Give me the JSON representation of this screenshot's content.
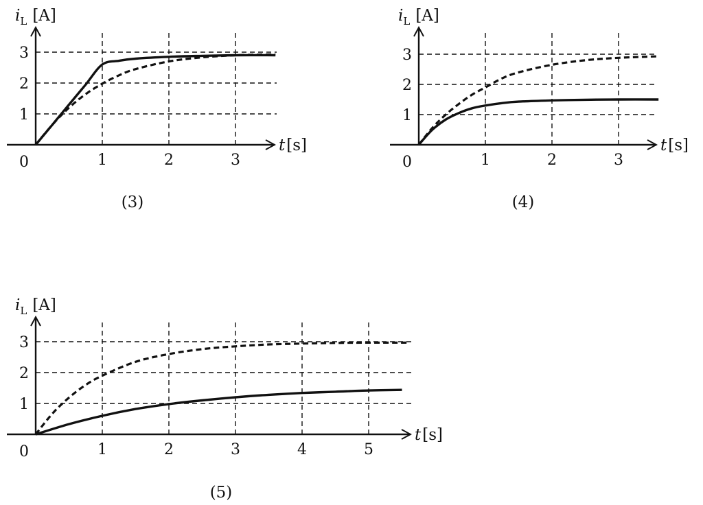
{
  "chart_data": [
    {
      "type": "line",
      "caption": "(3)",
      "ylabel": {
        "symbol": "i",
        "subscript": "L",
        "unit": "[A]"
      },
      "xlabel": {
        "symbol": "t",
        "unit": "[s]"
      },
      "origin_label": "0",
      "x_ticks": [
        "1",
        "2",
        "3"
      ],
      "y_ticks": [
        "1",
        "2",
        "3"
      ],
      "xlim": [
        0,
        3.6
      ],
      "ylim": [
        0,
        3.3
      ],
      "grid": true,
      "series": [
        {
          "style": "solid",
          "x": [
            0,
            0.25,
            0.5,
            0.75,
            1.0,
            1.25,
            1.5,
            2.0,
            2.5,
            3.0,
            3.6
          ],
          "y": [
            0,
            0.65,
            1.3,
            1.95,
            2.6,
            2.72,
            2.79,
            2.85,
            2.88,
            2.9,
            2.9
          ]
        },
        {
          "style": "dashed",
          "x": [
            0,
            0.25,
            0.5,
            0.75,
            1.0,
            1.25,
            1.5,
            2.0,
            2.5,
            3.0,
            3.6
          ],
          "y": [
            0,
            0.65,
            1.2,
            1.64,
            1.98,
            2.25,
            2.45,
            2.7,
            2.83,
            2.9,
            2.93
          ]
        }
      ]
    },
    {
      "type": "line",
      "caption": "(4)",
      "ylabel": {
        "symbol": "i",
        "subscript": "L",
        "unit": "[A]"
      },
      "xlabel": {
        "symbol": "t",
        "unit": "[s]"
      },
      "origin_label": "0",
      "x_ticks": [
        "1",
        "2",
        "3"
      ],
      "y_ticks": [
        "1",
        "2",
        "3"
      ],
      "xlim": [
        0,
        3.6
      ],
      "ylim": [
        0,
        3.3
      ],
      "grid": true,
      "series": [
        {
          "style": "solid",
          "x": [
            0,
            0.2,
            0.4,
            0.6,
            0.8,
            1.0,
            1.25,
            1.5,
            2.0,
            2.5,
            3.0,
            3.6
          ],
          "y": [
            0,
            0.49,
            0.83,
            1.05,
            1.21,
            1.3,
            1.38,
            1.43,
            1.47,
            1.49,
            1.5,
            1.5
          ]
        },
        {
          "style": "dashed",
          "x": [
            0,
            0.2,
            0.4,
            0.6,
            0.8,
            1.0,
            1.25,
            1.5,
            2.0,
            2.5,
            3.0,
            3.6
          ],
          "y": [
            0,
            0.55,
            0.99,
            1.35,
            1.66,
            1.9,
            2.2,
            2.4,
            2.65,
            2.8,
            2.88,
            2.93
          ]
        }
      ]
    },
    {
      "type": "line",
      "caption": "(5)",
      "ylabel": {
        "symbol": "i",
        "subscript": "L",
        "unit": "[A]"
      },
      "xlabel": {
        "symbol": "t",
        "unit": "[s]"
      },
      "origin_label": "0",
      "x_ticks": [
        "1",
        "2",
        "3",
        "4",
        "5"
      ],
      "y_ticks": [
        "1",
        "2",
        "3"
      ],
      "xlim": [
        0,
        5.6
      ],
      "ylim": [
        0,
        3.3
      ],
      "grid": true,
      "series": [
        {
          "style": "solid",
          "x": [
            0,
            0.5,
            1.0,
            1.5,
            2.0,
            2.5,
            3.0,
            3.5,
            4.0,
            4.5,
            5.0,
            5.5
          ],
          "y": [
            0,
            0.33,
            0.6,
            0.82,
            0.98,
            1.1,
            1.2,
            1.28,
            1.34,
            1.38,
            1.42,
            1.44
          ]
        },
        {
          "style": "dashed",
          "x": [
            0,
            0.25,
            0.5,
            0.75,
            1.0,
            1.5,
            2.0,
            2.5,
            3.0,
            3.5,
            4.0,
            4.5,
            5.0,
            5.6
          ],
          "y": [
            0,
            0.67,
            1.19,
            1.6,
            1.9,
            2.35,
            2.6,
            2.76,
            2.85,
            2.91,
            2.94,
            2.96,
            2.97,
            2.97
          ]
        }
      ]
    }
  ]
}
